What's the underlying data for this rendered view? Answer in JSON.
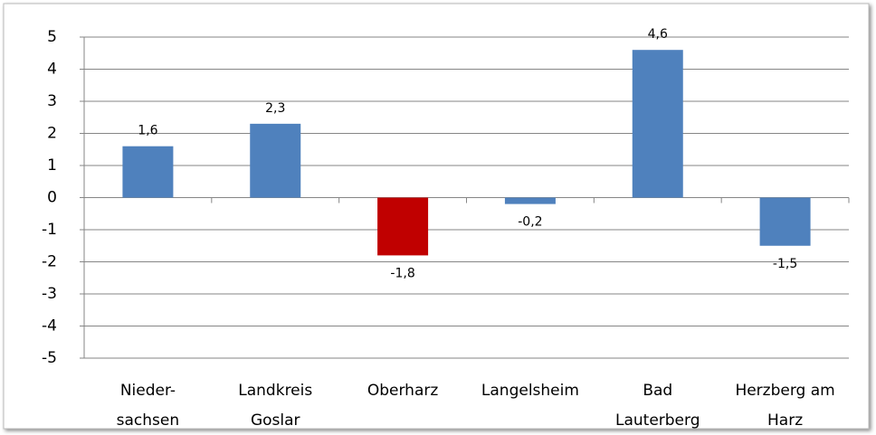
{
  "chart_data": {
    "type": "bar",
    "categories": [
      [
        "Nieder-",
        "sachsen"
      ],
      [
        "Landkreis",
        "Goslar"
      ],
      [
        "Oberharz"
      ],
      [
        "Langelsheim"
      ],
      [
        "Bad",
        "Lauterberg"
      ],
      [
        "Herzberg am",
        "Harz"
      ]
    ],
    "values": [
      1.6,
      2.3,
      -1.8,
      -0.2,
      4.6,
      -1.5
    ],
    "value_labels": [
      "1,6",
      "2,3",
      "-1,8",
      "-0,2",
      "4,6",
      "-1,5"
    ],
    "colors": [
      "#4f81bd",
      "#4f81bd",
      "#c00000",
      "#4f81bd",
      "#4f81bd",
      "#4f81bd"
    ],
    "ylim": [
      -5,
      5
    ],
    "yticks": [
      -5,
      -4,
      -3,
      -2,
      -1,
      0,
      1,
      2,
      3,
      4,
      5
    ],
    "grid": true
  }
}
